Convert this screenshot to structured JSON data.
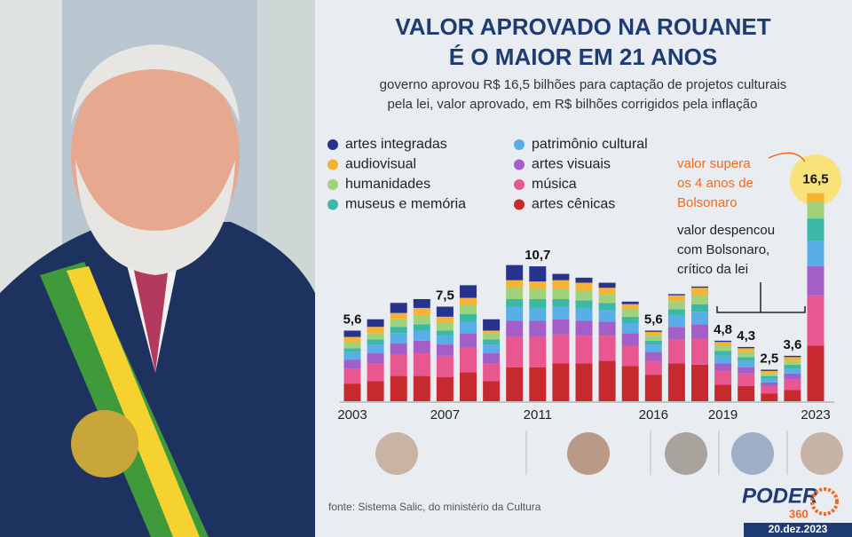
{
  "chart_data": {
    "type": "stacked_bar",
    "title": [
      "VALOR APROVADO NA ROUANET",
      "É O MAIOR EM 21 ANOS"
    ],
    "subtitle": [
      "governo aprovou R$ 16,5 bilhões para captação de projetos culturais",
      "pela lei, valor aprovado, em R$ bilhões corrigidos pela inflação"
    ],
    "categories": [
      "2003",
      null,
      null,
      null,
      "2007",
      null,
      null,
      null,
      "2011",
      null,
      null,
      null,
      null,
      "2016",
      null,
      null,
      "2019",
      null,
      null,
      null,
      "2023"
    ],
    "series": [
      {
        "name": "artes integradas",
        "color": "#27348b",
        "values": [
          0.5,
          0.6,
          0.8,
          0.7,
          0.8,
          1.0,
          0.9,
          1.2,
          1.2,
          0.5,
          0.4,
          0.4,
          0.2,
          0.1,
          0.1,
          0.1,
          0.1,
          0.1,
          0.1,
          0.1,
          0
        ]
      },
      {
        "name": "audiovisual",
        "color": "#f5b335",
        "values": [
          0.4,
          0.5,
          0.5,
          0.6,
          0.5,
          0.6,
          0.2,
          0.6,
          0.6,
          0.7,
          0.6,
          0.5,
          0.4,
          0.3,
          0.5,
          0.6,
          0.3,
          0.3,
          0.2,
          0.3,
          0.7
        ]
      },
      {
        "name": "humanidades",
        "color": "#9fd27a",
        "values": [
          0.5,
          0.5,
          0.6,
          0.7,
          0.6,
          0.7,
          0.5,
          0.9,
          0.8,
          0.8,
          0.8,
          0.7,
          0.6,
          0.4,
          0.6,
          0.7,
          0.4,
          0.4,
          0.2,
          0.3,
          1.3
        ]
      },
      {
        "name": "museus e memória",
        "color": "#3bb8a6",
        "values": [
          0.3,
          0.4,
          0.5,
          0.5,
          0.4,
          0.6,
          0.4,
          0.6,
          0.7,
          0.6,
          0.6,
          0.6,
          0.5,
          0.3,
          0.5,
          0.6,
          0.4,
          0.3,
          0.2,
          0.3,
          1.8
        ]
      },
      {
        "name": "patrimônio cultural",
        "color": "#5aaee8",
        "values": [
          0.6,
          0.7,
          0.8,
          0.8,
          0.7,
          0.9,
          0.7,
          1.1,
          1.0,
          1.0,
          1.0,
          0.9,
          0.8,
          0.6,
          0.9,
          1.0,
          0.6,
          0.5,
          0.3,
          0.4,
          2.0
        ]
      },
      {
        "name": "artes visuais",
        "color": "#a45ec8",
        "values": [
          0.7,
          0.8,
          0.9,
          1.0,
          0.9,
          1.1,
          0.8,
          1.3,
          1.3,
          1.2,
          1.2,
          1.1,
          1.0,
          0.7,
          1.0,
          1.1,
          0.6,
          0.5,
          0.3,
          0.5,
          2.3
        ]
      },
      {
        "name": "música",
        "color": "#e8578f",
        "values": [
          1.2,
          1.4,
          1.7,
          1.8,
          1.7,
          2.0,
          1.4,
          2.4,
          2.4,
          2.3,
          2.2,
          2.0,
          1.6,
          1.1,
          1.9,
          2.1,
          1.1,
          1.0,
          0.6,
          0.8,
          4.0
        ]
      },
      {
        "name": "artes cênicas",
        "color": "#c62a2e",
        "values": [
          1.4,
          1.6,
          2.0,
          2.0,
          1.9,
          2.3,
          1.6,
          2.7,
          2.7,
          3.0,
          3.0,
          3.2,
          2.8,
          2.1,
          3.0,
          2.9,
          1.3,
          1.2,
          0.6,
          0.9,
          4.4
        ]
      }
    ],
    "data_labels": [
      {
        "index": 0,
        "value": 5.6,
        "label": "5,6"
      },
      {
        "index": 4,
        "value": 7.5,
        "label": "7,5"
      },
      {
        "index": 8,
        "value": 10.7,
        "label": "10,7"
      },
      {
        "index": 13,
        "value": 5.6,
        "label": "5,6"
      },
      {
        "index": 16,
        "value": 4.8,
        "label": "4,8"
      },
      {
        "index": 17,
        "value": 4.3,
        "label": "4,3"
      },
      {
        "index": 18,
        "value": 2.5,
        "label": "2,5"
      },
      {
        "index": 19,
        "value": 3.6,
        "label": "3,6"
      },
      {
        "index": 20,
        "value": 16.5,
        "label": "16,5"
      }
    ],
    "annotations": [
      [
        "valor supera",
        "os 4 anos de",
        "Bolsonaro"
      ],
      [
        "valor despencou",
        "com Bolsonaro,",
        "crítico da lei"
      ]
    ],
    "source": "fonte: Sistema Salic, do ministério da Cultura",
    "logo": {
      "name": "PODER",
      "number": "360"
    },
    "date": "20.dez.2023"
  }
}
